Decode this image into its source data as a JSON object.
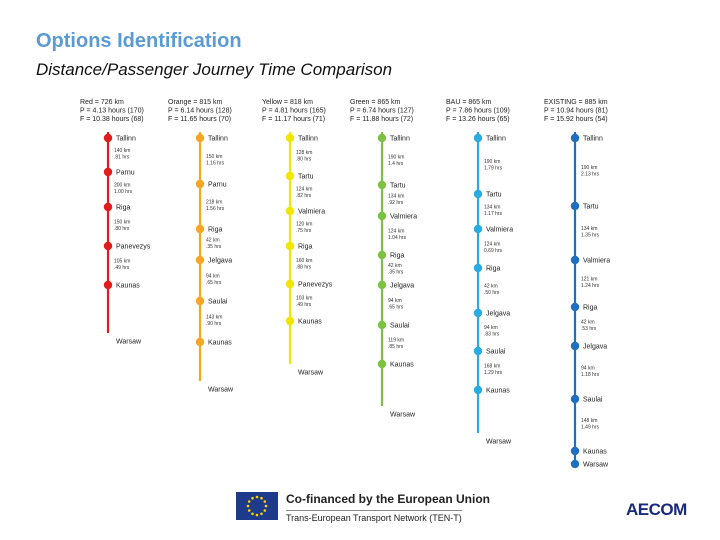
{
  "title": "Options Identification",
  "subtitle": "Distance/Passenger Journey Time Comparison",
  "footer": {
    "eu_line1": "Co-financed by the European Union",
    "eu_line2": "Trans-European Transport Network (TEN-T)",
    "brand": "AECOM"
  },
  "routes": [
    {
      "color": "#e21b1b",
      "header": [
        "Red = 726 km",
        "P = 4.13 hours (170)",
        "F = 10.38 hours (68)"
      ],
      "stations": [
        "Tallinn",
        "Parnu",
        "Riga",
        "Panevezys",
        "Kaunas",
        "Warsaw"
      ],
      "segments": [
        [
          "140 km",
          ".81 hrs"
        ],
        [
          "200 km",
          "1.00 hrs"
        ],
        [
          "150 km",
          ".80 hrs"
        ],
        [
          "105 km",
          ".49 hrs"
        ],
        []
      ]
    },
    {
      "color": "#f5a623",
      "header": [
        "Orange = 815 km",
        "P = 6.14 hours (128)",
        "F = 11.65 hours (70)"
      ],
      "stations": [
        "Tallinn",
        "Parnu",
        "Riga",
        "Jelgava",
        "Saulai",
        "Kaunas",
        "Warsaw"
      ],
      "segments": [
        [
          "150 km",
          "1.16 hrs"
        ],
        [
          "218 km",
          "1.56 hrs"
        ],
        [
          "42 km",
          ".35 hrs"
        ],
        [
          "94 km",
          ".65 hrs"
        ],
        [
          "143 km",
          ".90 hrs"
        ],
        []
      ]
    },
    {
      "color": "#f2e600",
      "header": [
        "Yellow = 818 km",
        "P = 4.81 hours (165)",
        "F = 11.17 hours (71)"
      ],
      "stations": [
        "Tallinn",
        "Tartu",
        "Valmiera",
        "Riga",
        "Panevezys",
        "Kaunas",
        "Warsaw"
      ],
      "segments": [
        [
          "128 km",
          ".80 hrs"
        ],
        [
          "124 km",
          ".82 hrs"
        ],
        [
          "120 km",
          ".75 hrs"
        ],
        [
          "160 km",
          ".88 hrs"
        ],
        [
          "103 km",
          ".49 hrs"
        ],
        []
      ]
    },
    {
      "color": "#7cc242",
      "header": [
        "Green = 865 km",
        "P = 6.74 hours (127)",
        "F = 11.88 hours (72)"
      ],
      "stations": [
        "Tallinn",
        "Tartu",
        "Valmiera",
        "Riga",
        "Jelgava",
        "Saulai",
        "Kaunas",
        "Warsaw"
      ],
      "segments": [
        [
          "190 km",
          "1.4 hrs"
        ],
        [
          "134 km",
          ".92 hrs"
        ],
        [
          "124 km",
          "1.04 hrs"
        ],
        [
          "42 km",
          ".35 hrs"
        ],
        [
          "94 km",
          ".65 hrs"
        ],
        [
          "119 km",
          ".85 hrs"
        ],
        []
      ]
    },
    {
      "color": "#29abe2",
      "header": [
        "BAU = 865 km",
        "P = 7.86 hours (109)",
        "F = 13.26 hours (65)"
      ],
      "stations": [
        "Tallinn",
        "Tartu",
        "Valmiera",
        "Riga",
        "Jelgava",
        "Saulai",
        "Kaunas",
        "Warsaw"
      ],
      "segments": [
        [
          "190 km",
          "1.79 hrs"
        ],
        [
          "134 km",
          "1.17 hrs"
        ],
        [
          "124 km",
          "0.69 hrs"
        ],
        [
          "42 km",
          ".50 hrs"
        ],
        [
          "94 km",
          ".83 hrs"
        ],
        [
          "168 km",
          "1.29 hrs"
        ],
        []
      ]
    },
    {
      "color": "#1f6fbf",
      "header": [
        "EXISTING = 885 km",
        "P = 10.94 hours (81)",
        "F = 15.92 hours (54)"
      ],
      "stations": [
        "Tallinn",
        "Tartu",
        "Valmiera",
        "Riga",
        "Jelgava",
        "Saulai",
        "Kaunas",
        "Warsaw"
      ],
      "segments": [
        [
          "190 km",
          "2.13 hrs"
        ],
        [
          "134 km",
          "1.35 hrs"
        ],
        [
          "121 km",
          "1.24 hrs"
        ],
        [
          "42 km",
          ".53 hrs"
        ],
        [
          "94 km",
          "1.18 hrs"
        ],
        [
          "148 km",
          "1.49 hrs"
        ],
        []
      ]
    }
  ]
}
